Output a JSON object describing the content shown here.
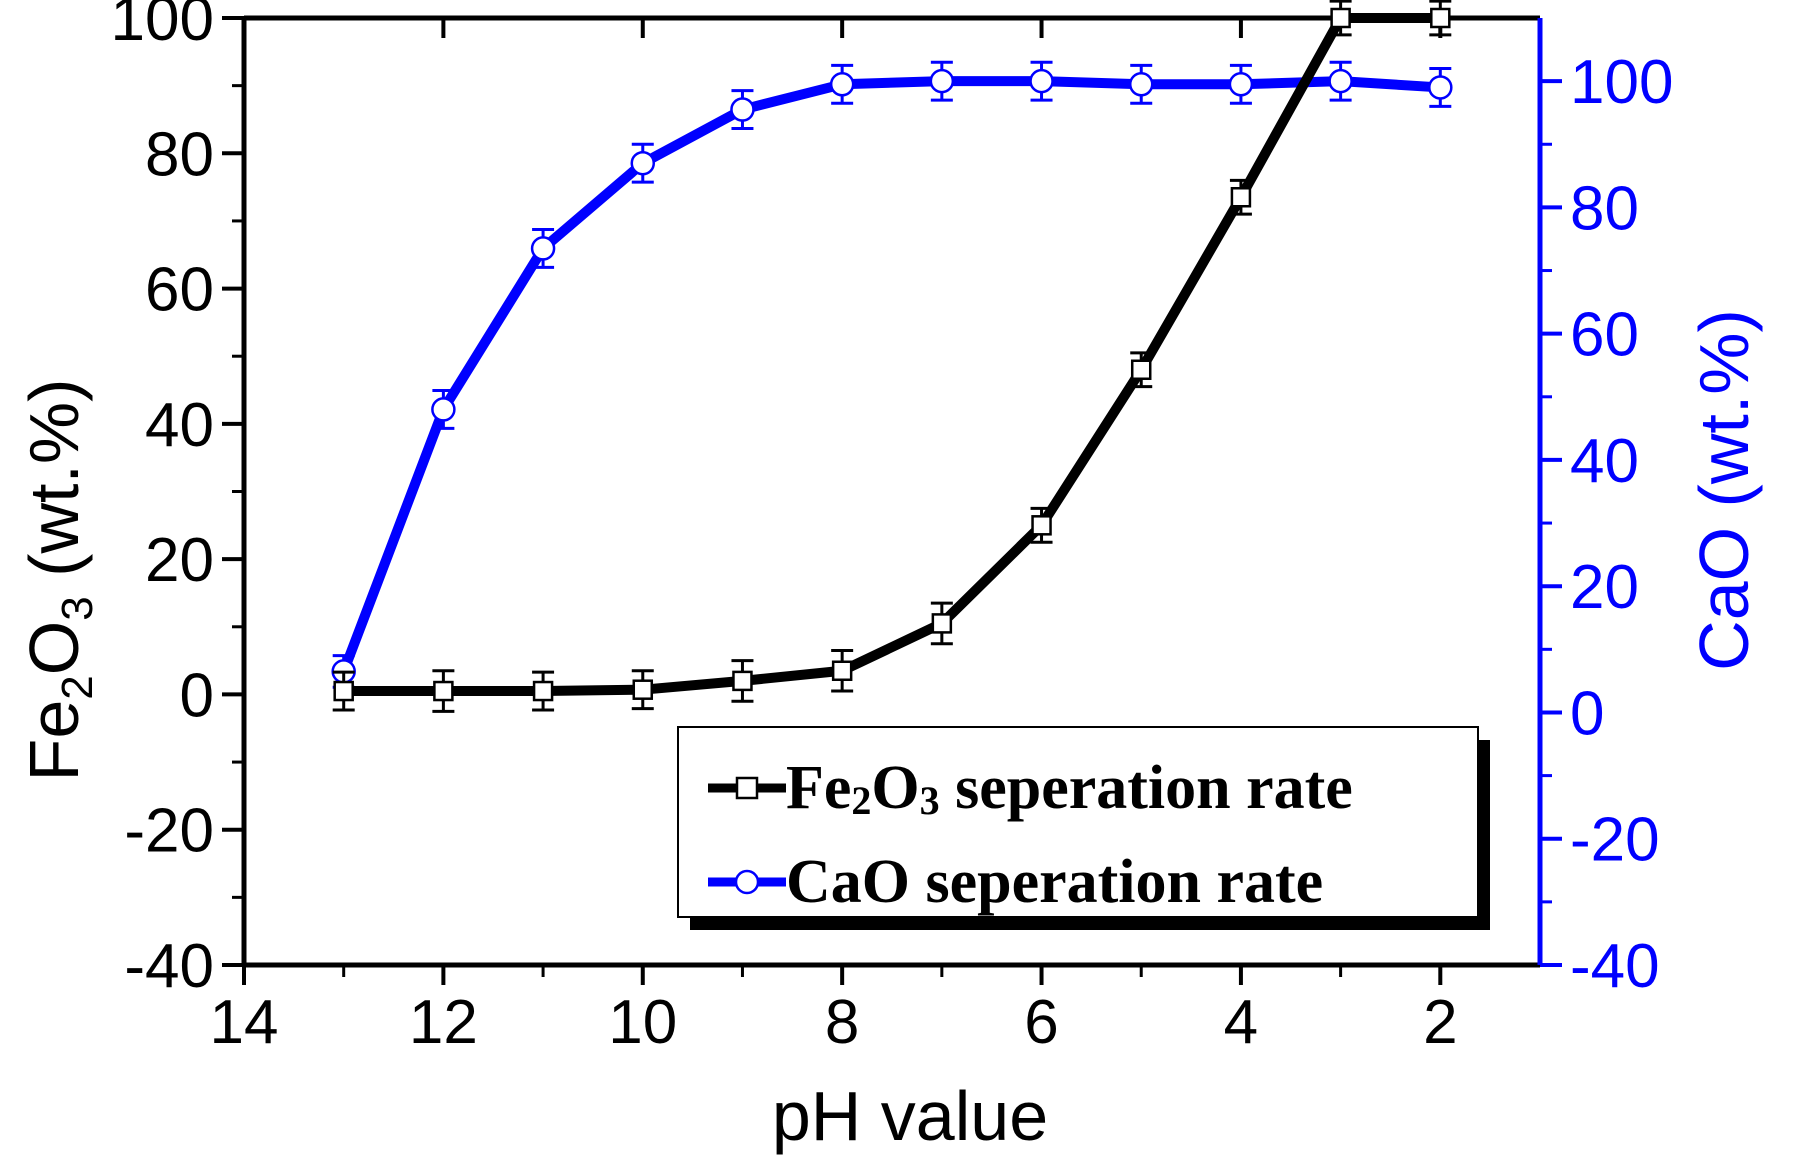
{
  "chart_data": {
    "type": "line",
    "x": [
      13,
      12,
      11,
      10,
      9,
      8,
      7,
      6,
      5,
      4,
      3,
      2
    ],
    "xlim": [
      14,
      1
    ],
    "xticks": [
      14,
      12,
      10,
      8,
      6,
      4,
      2
    ],
    "xlabel": "pH value",
    "left_axis": {
      "label_parts": [
        "Fe",
        "2",
        "O",
        "3",
        " (wt.%)"
      ],
      "ylim": [
        -40,
        100
      ],
      "ticks": [
        -40,
        -20,
        0,
        20,
        40,
        60,
        80,
        100
      ],
      "color": "#000000"
    },
    "right_axis": {
      "label": "CaO (wt.%)",
      "ylim": [
        -40,
        110
      ],
      "ticks": [
        -40,
        -20,
        0,
        20,
        40,
        60,
        80,
        100
      ],
      "color": "#0000ff"
    },
    "series": [
      {
        "name": "Fe2O3 seperation rate",
        "legend_parts": [
          "Fe",
          "2",
          "O",
          "3",
          " seperation rate"
        ],
        "axis": "left",
        "marker": "square",
        "color": "#000000",
        "values": [
          0.5,
          0.5,
          0.5,
          0.7,
          2.0,
          3.5,
          10.5,
          25.0,
          48.0,
          73.5,
          100.0,
          100.0
        ],
        "errors": [
          2.8,
          3.0,
          2.8,
          2.8,
          3.0,
          3.0,
          3.0,
          2.5,
          2.5,
          2.5,
          2.5,
          2.5
        ]
      },
      {
        "name": "CaO seperation rate",
        "legend_parts": [
          "CaO seperation rate"
        ],
        "axis": "right",
        "marker": "circle",
        "color": "#0000ff",
        "values": [
          6.5,
          48.0,
          73.5,
          87.0,
          95.5,
          99.5,
          100.0,
          100.0,
          99.5,
          99.5,
          100.0,
          99.0
        ],
        "errors": [
          2.5,
          3.0,
          3.0,
          3.0,
          3.0,
          3.0,
          3.0,
          3.0,
          3.0,
          3.0,
          3.0,
          3.0
        ]
      }
    ]
  }
}
